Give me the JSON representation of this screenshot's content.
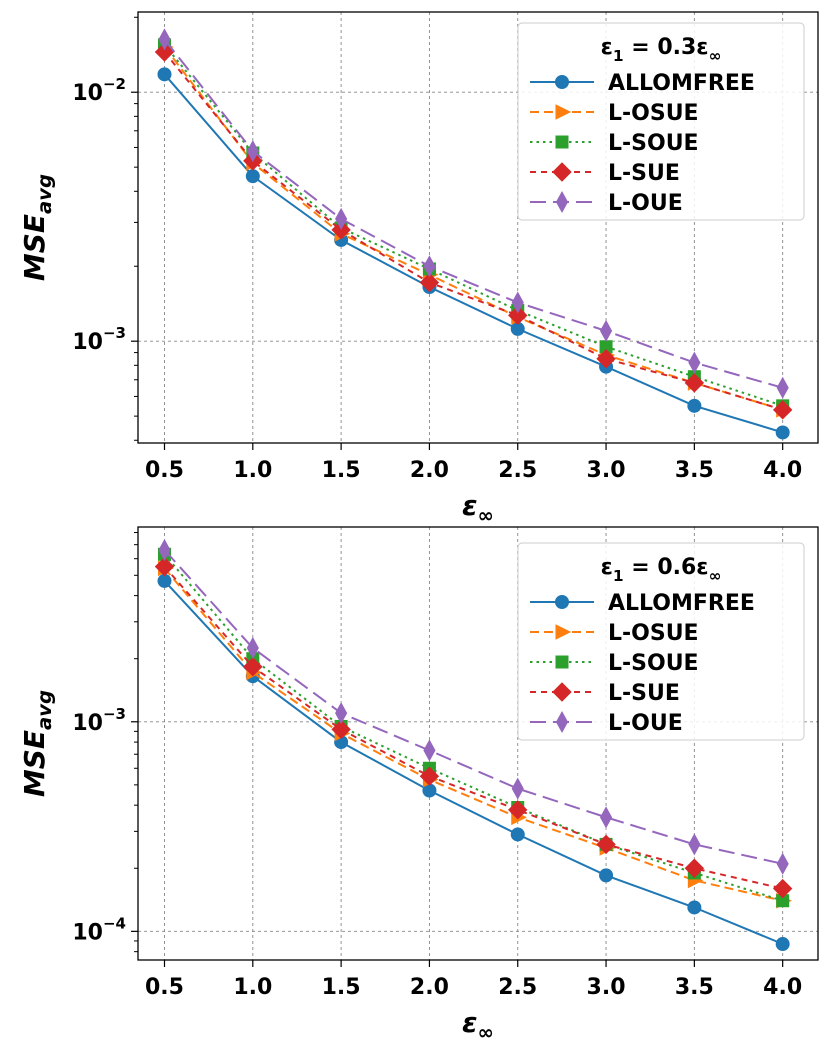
{
  "chart_data": [
    {
      "type": "line",
      "xscale": "linear",
      "yscale": "log",
      "x": [
        0.5,
        1.0,
        1.5,
        2.0,
        2.5,
        3.0,
        3.5,
        4.0
      ],
      "xticks": [
        "0.5",
        "1.0",
        "1.5",
        "2.0",
        "2.5",
        "3.0",
        "3.5",
        "4.0"
      ],
      "yticks": [
        {
          "value": 0.01,
          "base": "10",
          "exp": "−2"
        },
        {
          "value": 0.001,
          "base": "10",
          "exp": "−3"
        }
      ],
      "xlim": [
        0.35,
        4.2
      ],
      "ylim": [
        0.00039,
        0.021
      ],
      "xlabel": {
        "main": "ε",
        "sub": "∞"
      },
      "ylabel": {
        "main": "MSE",
        "sub": "avg"
      },
      "grid": true,
      "legend": {
        "position": "top-right",
        "title": {
          "main": "ε",
          "sub": "1",
          "rest": "  = 0.3ε",
          "rest_sub": "∞"
        }
      },
      "series": [
        {
          "name": "ALLOMFREE",
          "color": "#1f77b4",
          "dash": "",
          "marker": "circle",
          "values": [
            0.0118,
            0.0046,
            0.00255,
            0.00165,
            0.00112,
            0.00079,
            0.00055,
            0.00043
          ]
        },
        {
          "name": "L-OSUE",
          "color": "#ff7f0e",
          "dash": "9,5",
          "marker": "triangle-right",
          "values": [
            0.0152,
            0.0052,
            0.0027,
            0.00185,
            0.00125,
            0.00088,
            0.00068,
            0.00053
          ]
        },
        {
          "name": "L-SOUE",
          "color": "#2ca02c",
          "dash": "2.5,4",
          "marker": "square",
          "values": [
            0.0155,
            0.0057,
            0.00285,
            0.00195,
            0.00133,
            0.00095,
            0.00072,
            0.00055
          ]
        },
        {
          "name": "L-SUE",
          "color": "#d62728",
          "dash": "6,5",
          "marker": "diamond",
          "values": [
            0.0145,
            0.0053,
            0.0028,
            0.00172,
            0.00127,
            0.00085,
            0.00068,
            0.00053
          ]
        },
        {
          "name": "L-OUE",
          "color": "#9467bd",
          "dash": "16,7",
          "marker": "thin-diamond",
          "values": [
            0.0163,
            0.0058,
            0.0031,
            0.002,
            0.00143,
            0.0011,
            0.00082,
            0.00065
          ]
        }
      ]
    },
    {
      "type": "line",
      "xscale": "linear",
      "yscale": "log",
      "x": [
        0.5,
        1.0,
        1.5,
        2.0,
        2.5,
        3.0,
        3.5,
        4.0
      ],
      "xticks": [
        "0.5",
        "1.0",
        "1.5",
        "2.0",
        "2.5",
        "3.0",
        "3.5",
        "4.0"
      ],
      "yticks": [
        {
          "value": 0.001,
          "base": "10",
          "exp": "−3"
        },
        {
          "value": 0.0001,
          "base": "10",
          "exp": "−4"
        }
      ],
      "xlim": [
        0.35,
        4.2
      ],
      "ylim": [
        7.3e-05,
        0.0085
      ],
      "xlabel": {
        "main": "ε",
        "sub": "∞"
      },
      "ylabel": {
        "main": "MSE",
        "sub": "avg"
      },
      "grid": true,
      "legend": {
        "position": "top-right",
        "title": {
          "main": "ε",
          "sub": "1",
          "rest": "  = 0.6ε",
          "rest_sub": "∞"
        }
      },
      "series": [
        {
          "name": "ALLOMFREE",
          "color": "#1f77b4",
          "dash": "",
          "marker": "circle",
          "values": [
            0.0047,
            0.00165,
            0.0008,
            0.00047,
            0.00029,
            0.000185,
            0.00013,
            8.7e-05
          ]
        },
        {
          "name": "L-OSUE",
          "color": "#ff7f0e",
          "dash": "9,5",
          "marker": "triangle-right",
          "values": [
            0.0054,
            0.00172,
            0.00088,
            0.00053,
            0.00035,
            0.00025,
            0.000175,
            0.00014
          ]
        },
        {
          "name": "L-SOUE",
          "color": "#2ca02c",
          "dash": "2.5,4",
          "marker": "square",
          "values": [
            0.0063,
            0.002,
            0.00095,
            0.0006,
            0.00039,
            0.00026,
            0.00019,
            0.00014
          ]
        },
        {
          "name": "L-SUE",
          "color": "#d62728",
          "dash": "6,5",
          "marker": "diamond",
          "values": [
            0.0055,
            0.00183,
            0.00092,
            0.00055,
            0.00038,
            0.00026,
            0.0002,
            0.00016
          ]
        },
        {
          "name": "L-OUE",
          "color": "#9467bd",
          "dash": "16,7",
          "marker": "thin-diamond",
          "values": [
            0.0066,
            0.00225,
            0.0011,
            0.00073,
            0.00048,
            0.00035,
            0.00026,
            0.00021
          ]
        }
      ]
    }
  ]
}
